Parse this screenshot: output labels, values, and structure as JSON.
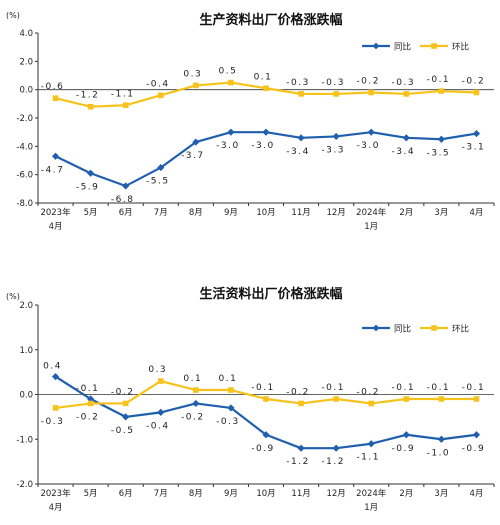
{
  "chart_data": [
    {
      "type": "line",
      "title": "生产资料出厂价格涨跌幅",
      "yunit": "(%)",
      "ylim": [
        -8.0,
        4.0
      ],
      "yticks": [
        "4.0",
        "2.0",
        "0.0",
        "-2.0",
        "-4.0",
        "-6.0",
        "-8.0"
      ],
      "ytick_values": [
        4,
        2,
        0,
        -2,
        -4,
        -6,
        -8
      ],
      "categories": [
        [
          "2023年",
          "4月"
        ],
        [
          "5月"
        ],
        [
          "6月"
        ],
        [
          "7月"
        ],
        [
          "8月"
        ],
        [
          "9月"
        ],
        [
          "10月"
        ],
        [
          "11月"
        ],
        [
          "12月"
        ],
        [
          "2024年",
          "1月"
        ],
        [
          "2月"
        ],
        [
          "3月"
        ],
        [
          "4月"
        ]
      ],
      "grid": false,
      "legend_position": "top-right",
      "series": [
        {
          "name": "同比",
          "color": "#1f5fae",
          "marker": "diamond",
          "values": [
            -4.7,
            -5.9,
            -6.8,
            -5.5,
            -3.7,
            -3.0,
            -3.0,
            -3.4,
            -3.3,
            -3.0,
            -3.4,
            -3.5,
            -3.1
          ],
          "labels": [
            "-4.7",
            "-5.9",
            "-6.8",
            "-5.5",
            "-3.7",
            "-3.0",
            "-3.0",
            "-3.4",
            "-3.3",
            "-3.0",
            "-3.4",
            "-3.5",
            "-3.1"
          ]
        },
        {
          "name": "环比",
          "color": "#f7c31a",
          "marker": "square",
          "values": [
            -0.6,
            -1.2,
            -1.1,
            -0.4,
            0.3,
            0.5,
            0.1,
            -0.3,
            -0.3,
            -0.2,
            -0.3,
            -0.1,
            -0.2
          ],
          "labels": [
            "-0.6",
            "-1.2",
            "-1.1",
            "-0.4",
            "0.3",
            "0.5",
            "0.1",
            "-0.3",
            "-0.3",
            "-0.2",
            "-0.3",
            "-0.1",
            "-0.2"
          ]
        }
      ]
    },
    {
      "type": "line",
      "title": "生活资料出厂价格涨跌幅",
      "yunit": "(%)",
      "ylim": [
        -2.0,
        2.0
      ],
      "yticks": [
        "2.0",
        "1.0",
        "0.0",
        "-1.0",
        "-2.0"
      ],
      "ytick_values": [
        2,
        1,
        0,
        -1,
        -2
      ],
      "categories": [
        [
          "2023年",
          "4月"
        ],
        [
          "5月"
        ],
        [
          "6月"
        ],
        [
          "7月"
        ],
        [
          "8月"
        ],
        [
          "9月"
        ],
        [
          "10月"
        ],
        [
          "11月"
        ],
        [
          "12月"
        ],
        [
          "2024年",
          "1月"
        ],
        [
          "2月"
        ],
        [
          "3月"
        ],
        [
          "4月"
        ]
      ],
      "grid": false,
      "legend_position": "top-right",
      "series": [
        {
          "name": "同比",
          "color": "#1f5fae",
          "marker": "diamond",
          "values": [
            0.4,
            -0.1,
            -0.5,
            -0.4,
            -0.2,
            -0.3,
            -0.9,
            -1.2,
            -1.2,
            -1.1,
            -0.9,
            -1.0,
            -0.9
          ],
          "labels": [
            "0.4",
            "-0.1",
            "-0.5",
            "-0.4",
            "-0.2",
            "-0.3",
            "-0.9",
            "-1.2",
            "-1.2",
            "-1.1",
            "-0.9",
            "-1.0",
            "-0.9"
          ]
        },
        {
          "name": "环比",
          "color": "#f7c31a",
          "marker": "square",
          "values": [
            -0.3,
            -0.2,
            -0.2,
            0.3,
            0.1,
            0.1,
            -0.1,
            -0.2,
            -0.1,
            -0.2,
            -0.1,
            -0.1,
            -0.1
          ],
          "labels": [
            "-0.3",
            "-0.2",
            "-0.2",
            "0.3",
            "0.1",
            "0.1",
            "-0.1",
            "-0.2",
            "-0.1",
            "-0.2",
            "-0.1",
            "-0.1",
            "-0.1"
          ]
        }
      ]
    }
  ]
}
